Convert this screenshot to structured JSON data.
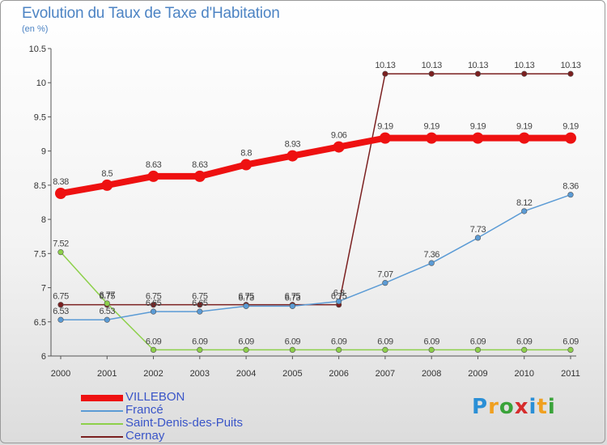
{
  "header": {
    "title": "Evolution du Taux de Taxe d'Habitation",
    "subtitle": "(en %)"
  },
  "brand": {
    "text": "Proxiti",
    "letters": [
      "P",
      "r",
      "o",
      "x",
      "i",
      "t",
      "i"
    ],
    "colors": [
      "#2a8fd6",
      "#f0a020",
      "#3aa33a",
      "#d62c2c",
      "#2a8fd6",
      "#f0a020",
      "#3aa33a"
    ]
  },
  "chart_data": {
    "type": "line",
    "title": "Evolution du Taux de Taxe d'Habitation",
    "subtitle": "(en %)",
    "xlabel": "",
    "ylabel": "",
    "categories": [
      "2000",
      "2001",
      "2002",
      "2003",
      "2004",
      "2005",
      "2006",
      "2007",
      "2008",
      "2009",
      "2010",
      "2011"
    ],
    "ylim": [
      6,
      10.5
    ],
    "yticks": [
      "6",
      "6.5",
      "7",
      "7.5",
      "8",
      "8.5",
      "9",
      "9.5",
      "10",
      "10.5"
    ],
    "grid": false,
    "legend_position": "bottom-left",
    "series": [
      {
        "name": "VILLEBON",
        "color": "#ee1111",
        "width": 8,
        "marker": 7,
        "values": [
          8.38,
          8.5,
          8.63,
          8.63,
          8.8,
          8.93,
          9.06,
          9.19,
          9.19,
          9.19,
          9.19,
          9.19
        ],
        "labels": [
          "8.38",
          "8.5",
          "8.63",
          "8.63",
          "8.8",
          "8.93",
          "9.06",
          "9.19",
          "9.19",
          "9.19",
          "9.19",
          "9.19"
        ]
      },
      {
        "name": "Francé",
        "color": "#5b9bd5",
        "width": 1.5,
        "marker": 3.3,
        "values": [
          6.53,
          6.53,
          6.65,
          6.65,
          6.73,
          6.73,
          6.8,
          7.07,
          7.36,
          7.73,
          8.12,
          8.36
        ],
        "labels": [
          "6.53",
          "6.53",
          "6.65",
          "6.65",
          "6.73",
          "6.73",
          "6.8",
          "7.07",
          "7.36",
          "7.73",
          "8.12",
          "8.36"
        ]
      },
      {
        "name": "Saint-Denis-des-Puits",
        "color": "#8dd04a",
        "width": 1.5,
        "marker": 3.3,
        "values": [
          7.52,
          6.77,
          6.09,
          6.09,
          6.09,
          6.09,
          6.09,
          6.09,
          6.09,
          6.09,
          6.09,
          6.09
        ],
        "labels": [
          "7.52",
          "6.77",
          "6.09",
          "6.09",
          "6.09",
          "6.09",
          "6.09",
          "6.09",
          "6.09",
          "6.09",
          "6.09",
          "6.09"
        ]
      },
      {
        "name": "Cernay",
        "color": "#7b2020",
        "width": 1.5,
        "marker": 3.3,
        "values": [
          6.75,
          6.75,
          6.75,
          6.75,
          6.75,
          6.75,
          6.75,
          10.13,
          10.13,
          10.13,
          10.13,
          10.13
        ],
        "labels": [
          "6.75",
          "6.75",
          "6.75",
          "6.75",
          "6.75",
          "6.75",
          "6.75",
          "10.13",
          "10.13",
          "10.13",
          "10.13",
          "10.13"
        ]
      }
    ]
  }
}
